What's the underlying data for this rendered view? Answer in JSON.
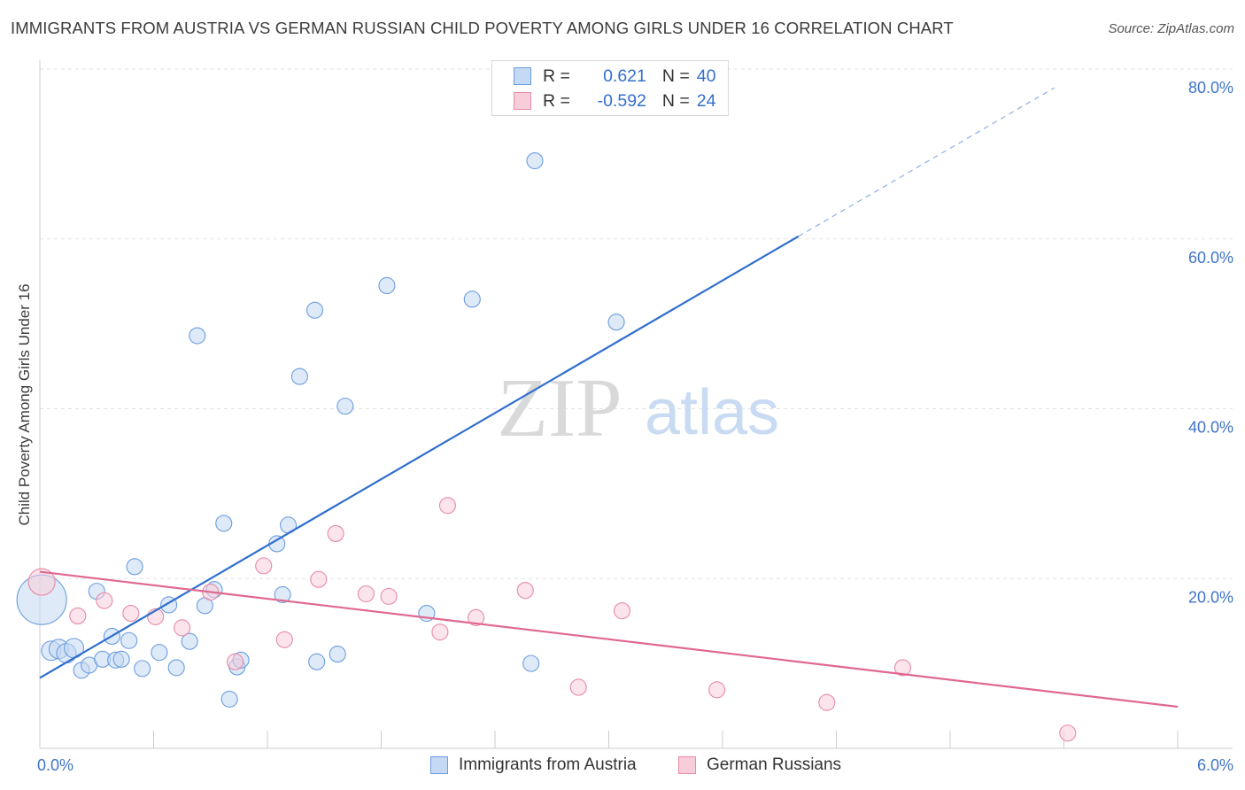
{
  "chart_data": {
    "type": "scatter",
    "title": "IMMIGRANTS FROM AUSTRIA VS GERMAN RUSSIAN CHILD POVERTY AMONG GIRLS UNDER 16 CORRELATION CHART",
    "source": "Source: ZipAtlas.com",
    "xlabel": "",
    "ylabel": "Child Poverty Among Girls Under 16",
    "xlim": [
      0,
      6
    ],
    "ylim": [
      0,
      80
    ],
    "x_tick_labels": [
      "0.0%",
      "6.0%"
    ],
    "y_tick_labels": [
      "20.0%",
      "40.0%",
      "60.0%",
      "80.0%"
    ],
    "y_ticks": [
      20,
      40,
      60,
      80
    ],
    "watermark": {
      "zip": "ZIP",
      "atlas": "atlas"
    },
    "legend_stats": [
      {
        "r_label": "R =",
        "r_value": "0.621",
        "n_label": "N =",
        "n_value": "40"
      },
      {
        "r_label": "R =",
        "r_value": "-0.592",
        "n_label": "N =",
        "n_value": "24"
      }
    ],
    "series": [
      {
        "name": "Immigrants from Austria",
        "color": "#6b9de0",
        "fill": "#c4d9f3",
        "trend": {
          "x0": 0,
          "y0": 8.3,
          "x1": 4.0,
          "y1": 60.3,
          "dash_x1": 5.35,
          "dash_y1": 77.8
        },
        "points": [
          [
            0.01,
            17.5
          ],
          [
            0.06,
            11.5
          ],
          [
            0.1,
            11.7
          ],
          [
            0.14,
            11.2
          ],
          [
            0.18,
            11.8
          ],
          [
            0.22,
            9.2
          ],
          [
            0.26,
            9.8
          ],
          [
            0.3,
            18.5
          ],
          [
            0.33,
            10.5
          ],
          [
            0.38,
            13.2
          ],
          [
            0.4,
            10.4
          ],
          [
            0.43,
            10.5
          ],
          [
            0.47,
            12.7
          ],
          [
            0.5,
            21.4
          ],
          [
            0.54,
            9.4
          ],
          [
            0.63,
            11.3
          ],
          [
            0.68,
            16.9
          ],
          [
            0.72,
            9.5
          ],
          [
            0.79,
            12.6
          ],
          [
            0.83,
            48.6
          ],
          [
            0.87,
            16.8
          ],
          [
            0.92,
            18.7
          ],
          [
            0.97,
            26.5
          ],
          [
            1.0,
            5.8
          ],
          [
            1.04,
            9.6
          ],
          [
            1.06,
            10.4
          ],
          [
            1.25,
            24.1
          ],
          [
            1.28,
            18.1
          ],
          [
            1.31,
            26.3
          ],
          [
            1.37,
            43.8
          ],
          [
            1.45,
            51.6
          ],
          [
            1.46,
            10.2
          ],
          [
            1.57,
            11.1
          ],
          [
            1.61,
            40.3
          ],
          [
            1.83,
            54.5
          ],
          [
            2.04,
            15.9
          ],
          [
            2.28,
            52.9
          ],
          [
            2.59,
            10.0
          ],
          [
            2.61,
            69.2
          ],
          [
            3.04,
            50.2
          ]
        ],
        "sizes": [
          28,
          11,
          11,
          11,
          11,
          9,
          9,
          9,
          9,
          9,
          9,
          9,
          9,
          9,
          9,
          9,
          9,
          9,
          9,
          9,
          9,
          9,
          9,
          9,
          9,
          9,
          9,
          9,
          9,
          9,
          9,
          9,
          9,
          9,
          9,
          9,
          9,
          9,
          9,
          9
        ]
      },
      {
        "name": "German Russians",
        "color": "#e88aa8",
        "fill": "#f7cdda",
        "trend": {
          "x0": 0,
          "y0": 20.8,
          "x1": 6.0,
          "y1": 4.9
        },
        "points": [
          [
            0.01,
            19.6
          ],
          [
            0.2,
            15.6
          ],
          [
            0.34,
            17.4
          ],
          [
            0.48,
            15.9
          ],
          [
            0.61,
            15.5
          ],
          [
            0.75,
            14.2
          ],
          [
            0.9,
            18.4
          ],
          [
            1.03,
            10.2
          ],
          [
            1.18,
            21.5
          ],
          [
            1.29,
            12.8
          ],
          [
            1.47,
            19.9
          ],
          [
            1.56,
            25.3
          ],
          [
            1.72,
            18.2
          ],
          [
            1.84,
            17.9
          ],
          [
            2.11,
            13.7
          ],
          [
            2.15,
            28.6
          ],
          [
            2.3,
            15.4
          ],
          [
            2.56,
            18.6
          ],
          [
            2.84,
            7.2
          ],
          [
            3.07,
            16.2
          ],
          [
            3.57,
            6.9
          ],
          [
            4.15,
            5.4
          ],
          [
            4.55,
            9.5
          ],
          [
            5.42,
            1.8
          ]
        ],
        "sizes": [
          15,
          9,
          9,
          9,
          9,
          9,
          9,
          9,
          9,
          9,
          9,
          9,
          9,
          9,
          9,
          9,
          9,
          9,
          9,
          9,
          9,
          9,
          9,
          9
        ]
      }
    ]
  }
}
